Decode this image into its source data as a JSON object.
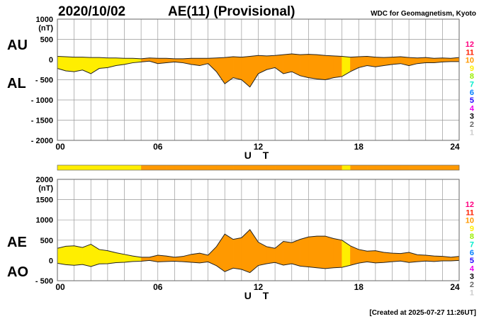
{
  "header": {
    "date": "2020/10/02",
    "title": "AE(11) (Provisional)",
    "source": "WDC for Geomagnetism, Kyoto"
  },
  "footer": "[Created at 2025-07-27 11:26UT]",
  "level_legend": {
    "labels": [
      "12",
      "11",
      "10",
      "9",
      "8",
      "7",
      "6",
      "5",
      "4",
      "3",
      "2",
      "1"
    ],
    "colors": [
      "#ff0080",
      "#ff2000",
      "#ff9900",
      "#ffee00",
      "#99ee00",
      "#00eecc",
      "#0080ff",
      "#2000ff",
      "#ee00ee",
      "#000000",
      "#666666",
      "#cccccc"
    ]
  },
  "chart_data": [
    {
      "type": "area",
      "name": "AU/AL",
      "series_labels": [
        "AU",
        "AL"
      ],
      "ylabel": "(nT)",
      "xlabel": "U T",
      "ylim": [
        -2000,
        1000
      ],
      "yticks": [
        "1000",
        "500",
        "0",
        "- 500",
        "- 1000",
        "- 1500",
        "- 2000"
      ],
      "ytick_values": [
        1000,
        500,
        0,
        -500,
        -1000,
        -1500,
        -2000
      ],
      "xticks": [
        "00",
        "06",
        "12",
        "18",
        "24"
      ],
      "xtick_values": [
        0,
        6,
        12,
        18,
        24
      ],
      "xlim": [
        0,
        24
      ]
    },
    {
      "type": "area",
      "name": "AE/AO",
      "series_labels": [
        "AE",
        "AO"
      ],
      "ylabel": "(nT)",
      "xlabel": "U T",
      "ylim": [
        -500,
        2000
      ],
      "yticks": [
        "2000",
        "1500",
        "1000",
        "500",
        "0",
        "- 500"
      ],
      "ytick_values": [
        2000,
        1500,
        1000,
        500,
        0,
        -500
      ],
      "xticks": [
        "00",
        "06",
        "12",
        "18",
        "24"
      ],
      "xtick_values": [
        0,
        6,
        12,
        18,
        24
      ],
      "xlim": [
        0,
        24
      ]
    }
  ],
  "series": {
    "t_hours": [
      0,
      0.5,
      1,
      1.5,
      2,
      2.5,
      3,
      3.5,
      4,
      4.5,
      5,
      5.5,
      6,
      6.5,
      7,
      7.5,
      8,
      8.5,
      9,
      9.5,
      10,
      10.5,
      11,
      11.5,
      12,
      12.5,
      13,
      13.5,
      14,
      14.5,
      15,
      15.5,
      16,
      16.5,
      17,
      17.5,
      18,
      18.5,
      19,
      19.5,
      20,
      20.5,
      21,
      21.5,
      22,
      22.5,
      23,
      23.5,
      24
    ],
    "AU": [
      80,
      70,
      60,
      60,
      50,
      50,
      40,
      40,
      30,
      30,
      20,
      40,
      30,
      30,
      20,
      20,
      30,
      30,
      30,
      40,
      50,
      70,
      60,
      80,
      100,
      90,
      100,
      120,
      140,
      120,
      130,
      120,
      100,
      90,
      80,
      60,
      70,
      80,
      60,
      50,
      60,
      70,
      50,
      40,
      50,
      30,
      40,
      30,
      50
    ],
    "AL": [
      -220,
      -280,
      -300,
      -260,
      -350,
      -220,
      -200,
      -150,
      -120,
      -80,
      -60,
      -40,
      -100,
      -80,
      -60,
      -80,
      -120,
      -150,
      -100,
      -300,
      -600,
      -450,
      -500,
      -680,
      -350,
      -250,
      -200,
      -350,
      -300,
      -400,
      -450,
      -480,
      -500,
      -450,
      -420,
      -300,
      -200,
      -150,
      -180,
      -150,
      -120,
      -100,
      -150,
      -100,
      -80,
      -80,
      -60,
      -50,
      -50
    ],
    "station_count": [
      9,
      9,
      9,
      9,
      9,
      9,
      9,
      9,
      9,
      9,
      10,
      10,
      10,
      10,
      10,
      10,
      10,
      10,
      10,
      10,
      10,
      10,
      10,
      10,
      10,
      10,
      10,
      10,
      10,
      10,
      10,
      10,
      10,
      10,
      9,
      10,
      10,
      10,
      10,
      10,
      10,
      10,
      10,
      10,
      10,
      10,
      10,
      10,
      10
    ]
  }
}
